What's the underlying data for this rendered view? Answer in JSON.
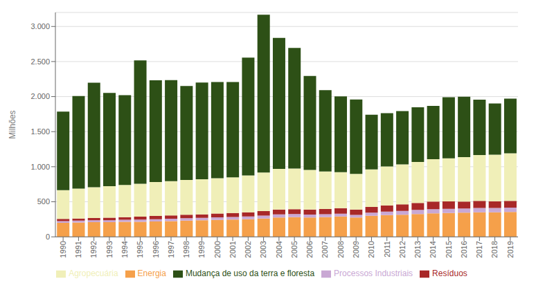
{
  "chart_data": {
    "type": "bar",
    "stacked": true,
    "grid": true,
    "legend": "bottom",
    "ylabel": "Milhões",
    "categories": [
      "1990",
      "1991",
      "1992",
      "1993",
      "1994",
      "1995",
      "1996",
      "1997",
      "1998",
      "1999",
      "2000",
      "2001",
      "2002",
      "2003",
      "2004",
      "2005",
      "2006",
      "2007",
      "2008",
      "2009",
      "2010",
      "2011",
      "2012",
      "2013",
      "2014",
      "2015",
      "2016",
      "2017",
      "2018",
      "2019"
    ],
    "ylim": [
      0,
      3200
    ],
    "yticks": [
      0,
      500,
      {
        "value": 1000,
        "label": "1.000"
      },
      {
        "value": 1500,
        "label": "1.500"
      },
      {
        "value": 2000,
        "label": "2.000"
      },
      {
        "value": 2500,
        "label": "2.500"
      },
      {
        "value": 3000,
        "label": "3.000"
      }
    ],
    "series": [
      {
        "name": "Energia",
        "color": "#f5a04a",
        "values": [
          200,
          205,
          210,
          210,
          215,
          215,
          220,
          225,
          230,
          235,
          240,
          245,
          250,
          260,
          275,
          280,
          275,
          280,
          290,
          275,
          300,
          310,
          315,
          325,
          335,
          340,
          345,
          350,
          350,
          355
        ]
      },
      {
        "name": "Processos Industriais",
        "color": "#c9a8d4",
        "values": [
          25,
          25,
          25,
          27,
          28,
          30,
          32,
          33,
          35,
          35,
          37,
          38,
          40,
          42,
          45,
          45,
          42,
          42,
          40,
          38,
          45,
          50,
          55,
          58,
          60,
          60,
          58,
          62,
          62,
          62
        ]
      },
      {
        "name": "Resíduos",
        "color": "#a82828",
        "values": [
          30,
          32,
          33,
          35,
          37,
          42,
          45,
          47,
          50,
          50,
          55,
          57,
          60,
          65,
          68,
          70,
          72,
          75,
          78,
          75,
          82,
          88,
          93,
          100,
          108,
          105,
          100,
          100,
          95,
          95
        ]
      },
      {
        "name": "Agropecuária",
        "color": "#f0efb8",
        "values": [
          410,
          425,
          440,
          450,
          460,
          470,
          485,
          490,
          495,
          500,
          505,
          508,
          525,
          550,
          580,
          580,
          565,
          535,
          515,
          510,
          535,
          555,
          570,
          585,
          605,
          615,
          635,
          655,
          665,
          680
        ]
      },
      {
        "name": "Mudança de uso da terra e floresta",
        "color": "#2d5016",
        "values": [
          1120,
          1320,
          1490,
          1330,
          1280,
          1760,
          1450,
          1440,
          1340,
          1380,
          1370,
          1360,
          1680,
          2250,
          1870,
          1720,
          1340,
          1160,
          1080,
          1060,
          780,
          760,
          760,
          780,
          760,
          870,
          860,
          790,
          730,
          780
        ]
      }
    ]
  }
}
